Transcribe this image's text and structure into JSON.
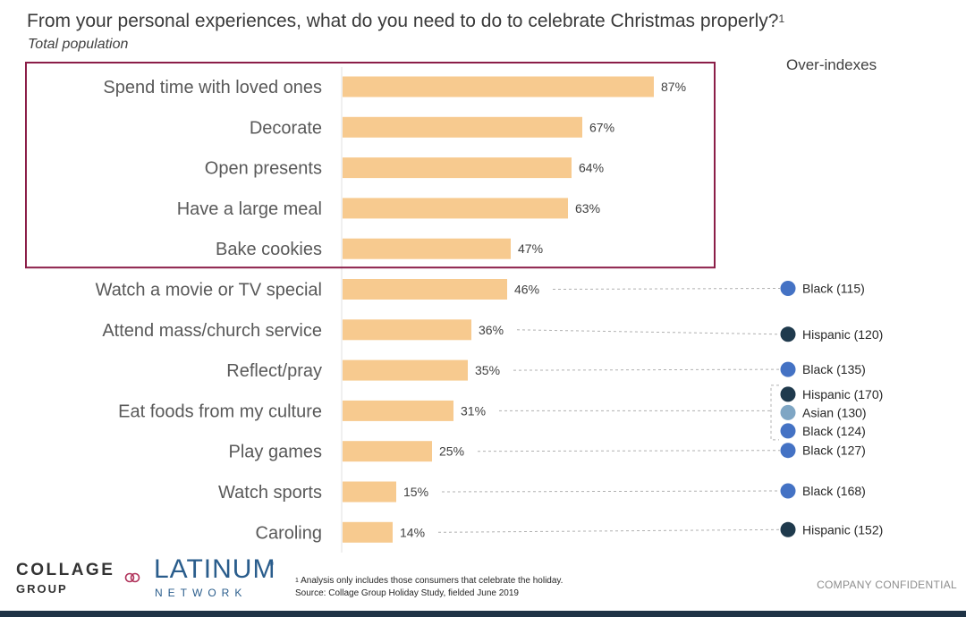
{
  "header": {
    "title": "From your personal experiences, what do you need to do to celebrate Christmas properly?",
    "title_sup": "1",
    "subtitle": "Total population",
    "overindex_label": "Over-indexes"
  },
  "chart_data": {
    "type": "bar",
    "orientation": "horizontal",
    "categories": [
      "Spend time with loved ones",
      "Decorate",
      "Open presents",
      "Have a large meal",
      "Bake cookies",
      "Watch a movie or TV special",
      "Attend mass/church service",
      "Reflect/pray",
      "Eat foods from my culture",
      "Play games",
      "Watch sports",
      "Caroling"
    ],
    "values": [
      87,
      67,
      64,
      63,
      47,
      46,
      36,
      35,
      31,
      25,
      15,
      14
    ],
    "value_labels": [
      "87%",
      "67%",
      "64%",
      "63%",
      "47%",
      "46%",
      "36%",
      "35%",
      "31%",
      "25%",
      "15%",
      "14%"
    ],
    "xlim": [
      0,
      100
    ],
    "bar_color": "#f7ca8f",
    "highlight_box": {
      "from_index": 0,
      "to_index": 4,
      "color": "#8b1e48"
    },
    "over_indexes": [
      {
        "category_index": 5,
        "items": [
          {
            "label": "Black (115)",
            "color": "#4472c4"
          }
        ]
      },
      {
        "category_index": 6,
        "items": [
          {
            "label": "Hispanic (120)",
            "color": "#1f3a4d"
          }
        ]
      },
      {
        "category_index": 7,
        "items": [
          {
            "label": "Black (135)",
            "color": "#4472c4"
          }
        ]
      },
      {
        "category_index": 8,
        "items": [
          {
            "label": "Hispanic (170)",
            "color": "#1f3a4d"
          },
          {
            "label": "Asian (130)",
            "color": "#7fa6c4"
          },
          {
            "label": "Black (124)",
            "color": "#4472c4"
          }
        ]
      },
      {
        "category_index": 9,
        "items": [
          {
            "label": "Black (127)",
            "color": "#4472c4"
          }
        ]
      },
      {
        "category_index": 10,
        "items": [
          {
            "label": "Black (168)",
            "color": "#4472c4"
          }
        ]
      },
      {
        "category_index": 11,
        "items": [
          {
            "label": "Hispanic (152)",
            "color": "#1f3a4d"
          }
        ]
      }
    ]
  },
  "footer": {
    "logo_collage_line1": "COLLAGE",
    "logo_collage_line2": "GROUP",
    "logo_latinum": "LATINUM",
    "logo_latinum_reg": "®",
    "logo_network": "NETWORK",
    "footnote_sup": "1",
    "footnote_line1": " Analysis only includes those consumers that celebrate the holiday.",
    "footnote_line2": "Source: Collage Group Holiday Study, fielded June 2019",
    "confidential": "COMPANY CONFIDENTIAL"
  }
}
